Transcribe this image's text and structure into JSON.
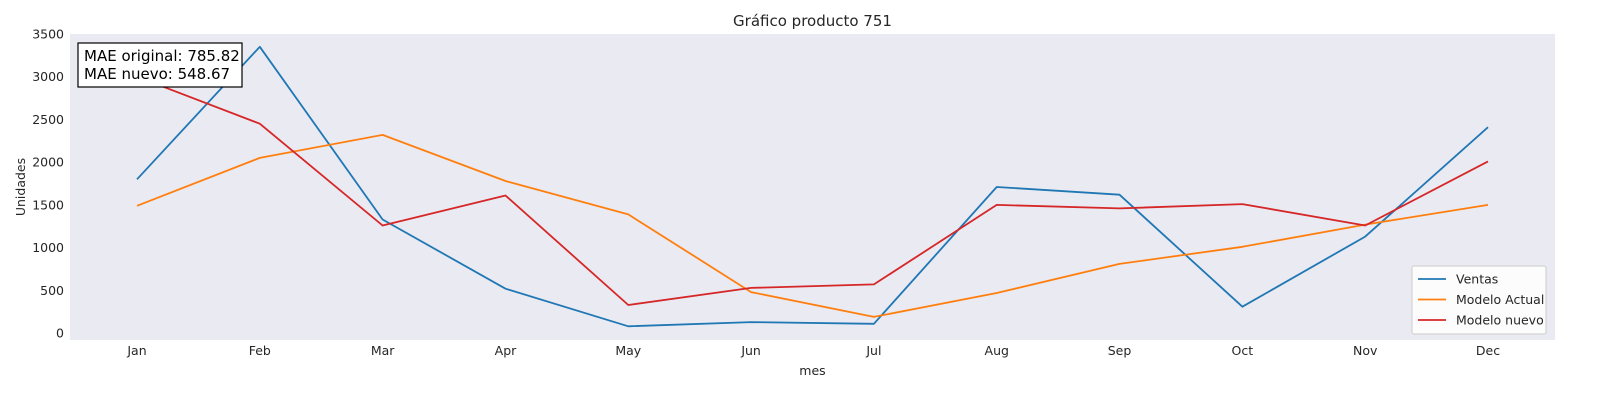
{
  "chart_data": {
    "type": "line",
    "title": "Gráfico producto 751",
    "xlabel": "mes",
    "ylabel": "Unidades",
    "categories": [
      "Jan",
      "Feb",
      "Mar",
      "Apr",
      "May",
      "Jun",
      "Jul",
      "Aug",
      "Sep",
      "Oct",
      "Nov",
      "Dec"
    ],
    "yticks": [
      0,
      500,
      1000,
      1500,
      2000,
      2500,
      3000,
      3500
    ],
    "ylim": [
      -80,
      3500
    ],
    "grid": false,
    "legend_position": "bottom-right",
    "background_color": "#eaeaf2",
    "annotation": {
      "lines": [
        "MAE original: 785.82",
        "MAE nuevo: 548.67"
      ],
      "position": "top-left"
    },
    "series": [
      {
        "name": "Ventas",
        "color": "#1f77b4",
        "values": [
          1800,
          3350,
          1330,
          520,
          80,
          130,
          110,
          1710,
          1620,
          310,
          1130,
          2410
        ]
      },
      {
        "name": "Modelo Actual",
        "color": "#ff7f0e",
        "values": [
          1490,
          2050,
          2320,
          1780,
          1390,
          480,
          190,
          470,
          810,
          1010,
          1270,
          1500
        ]
      },
      {
        "name": "Modelo nuevo",
        "color": "#d62728",
        "values": [
          3000,
          2450,
          1260,
          1610,
          330,
          530,
          570,
          1500,
          1460,
          1510,
          1260,
          2010
        ]
      }
    ]
  }
}
